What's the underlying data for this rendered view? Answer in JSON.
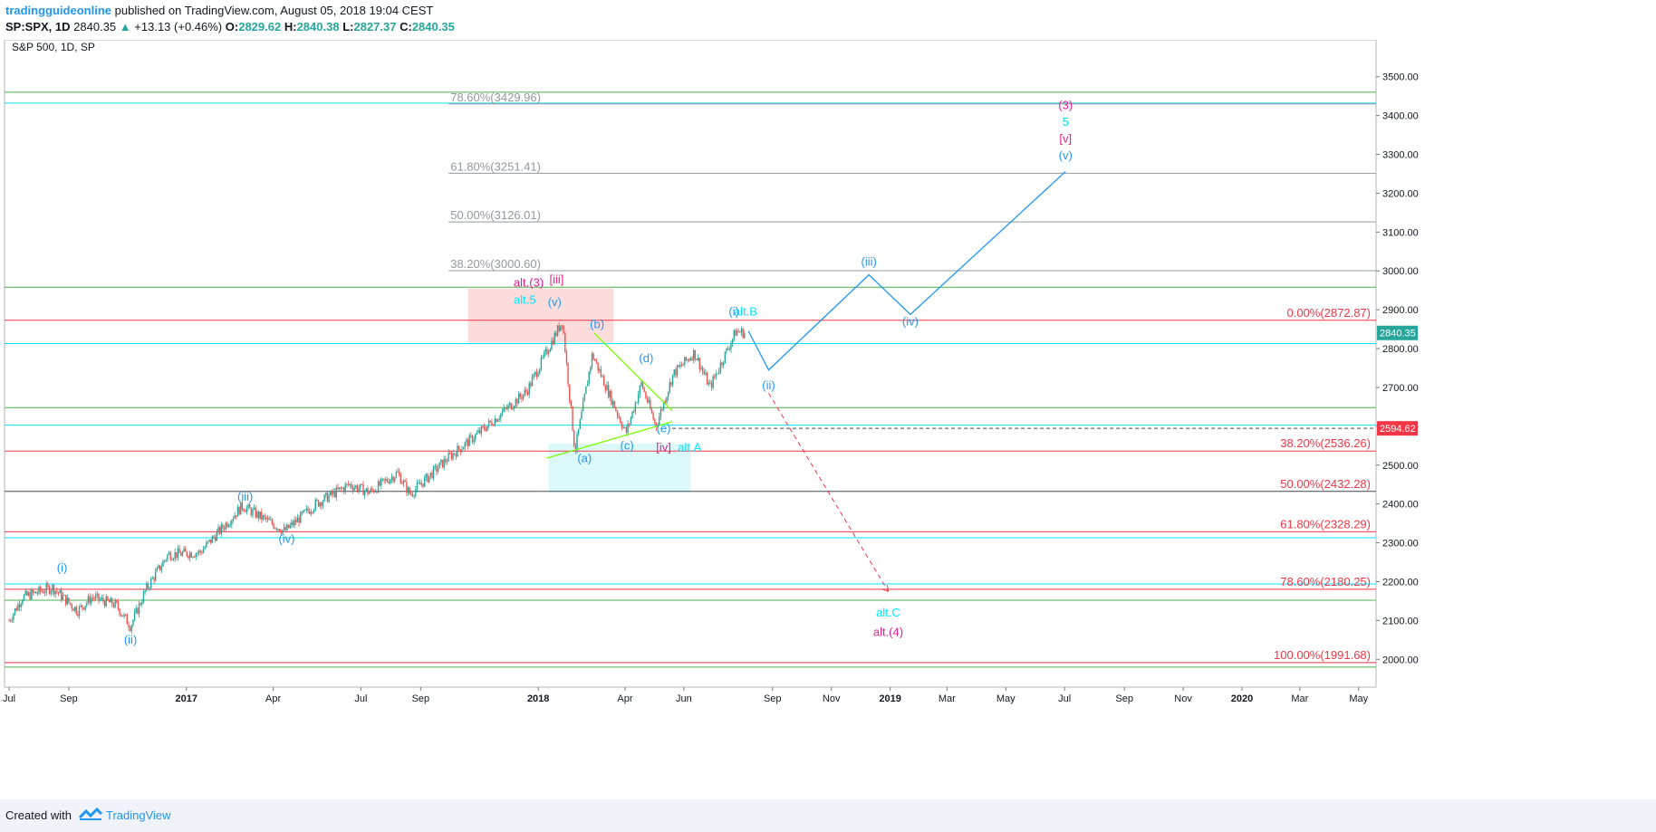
{
  "header": {
    "author": "tradingguideonline",
    "published_text": "published on TradingView.com, August 05, 2018 19:04 CEST",
    "symbol": "SP:SPX, 1D",
    "last": "2840.35",
    "change": "+13.13 (+0.46%)",
    "open_label": "O:",
    "open": "2829.62",
    "high_label": "H:",
    "high": "2840.38",
    "low_label": "L:",
    "low": "2827.37",
    "close_label": "C:",
    "close": "2840.35"
  },
  "footer": {
    "created_with": "Created with",
    "brand": "TradingView"
  },
  "colors": {
    "up": "#26a69a",
    "down": "#ef5350",
    "cyan": "#00e5ff",
    "green": "#4caf50",
    "red": "#f23645",
    "blue": "#2196f3",
    "magenta": "#e91e8c",
    "gray": "#9598a1",
    "lime": "#76ff03"
  },
  "chart_data": {
    "type": "candlestick",
    "title": "S&P 500, 1D, SP",
    "ylim": [
      1940,
      3560
    ],
    "y_ticks": [
      2000,
      2100,
      2200,
      2300,
      2400,
      2500,
      2600,
      2700,
      2800,
      2900,
      3000,
      3100,
      3200,
      3300,
      3400,
      3500
    ],
    "x_ticks": [
      "Jul",
      "Sep",
      "2017",
      "Apr",
      "Jul",
      "Sep",
      "2018",
      "Apr",
      "Jun",
      "Sep",
      "Nov",
      "2019",
      "Mar",
      "May",
      "Jul",
      "Sep",
      "Nov",
      "2020",
      "Mar",
      "May"
    ],
    "last_price": {
      "value": 2840.35,
      "label": "2840.35"
    },
    "marked_level": {
      "value": 2594.62,
      "label": "2594.62"
    },
    "price_path": [
      [
        "2016-07-01",
        2100
      ],
      [
        "2016-07-15",
        2160
      ],
      [
        "2016-08-15",
        2185
      ],
      [
        "2016-09-10",
        2125
      ],
      [
        "2016-09-25",
        2160
      ],
      [
        "2016-10-20",
        2140
      ],
      [
        "2016-11-04",
        2085
      ],
      [
        "2016-11-20",
        2180
      ],
      [
        "2016-12-13",
        2270
      ],
      [
        "2017-01-15",
        2275
      ],
      [
        "2017-02-28",
        2395
      ],
      [
        "2017-04-13",
        2330
      ],
      [
        "2017-05-15",
        2400
      ],
      [
        "2017-06-19",
        2450
      ],
      [
        "2017-07-10",
        2430
      ],
      [
        "2017-08-08",
        2480
      ],
      [
        "2017-08-21",
        2425
      ],
      [
        "2017-09-30",
        2520
      ],
      [
        "2017-10-30",
        2580
      ],
      [
        "2017-12-20",
        2690
      ],
      [
        "2018-01-26",
        2872
      ],
      [
        "2018-02-08",
        2535
      ],
      [
        "2018-02-26",
        2785
      ],
      [
        "2018-04-02",
        2582
      ],
      [
        "2018-04-18",
        2710
      ],
      [
        "2018-05-03",
        2600
      ],
      [
        "2018-05-21",
        2735
      ],
      [
        "2018-06-12",
        2790
      ],
      [
        "2018-06-28",
        2700
      ],
      [
        "2018-07-25",
        2845
      ],
      [
        "2018-08-03",
        2840
      ]
    ],
    "horizontal_lines": [
      {
        "value": 3460,
        "color": "green"
      },
      {
        "value": 3432,
        "color": "cyan"
      },
      {
        "value": 2958,
        "color": "green"
      },
      {
        "value": 2872.87,
        "color": "red"
      },
      {
        "value": 2813,
        "color": "cyan"
      },
      {
        "value": 2648,
        "color": "green"
      },
      {
        "value": 2603,
        "color": "cyan"
      },
      {
        "value": 2536.26,
        "color": "red"
      },
      {
        "value": 2432.28,
        "color": "dark"
      },
      {
        "value": 2328.29,
        "color": "red"
      },
      {
        "value": 2313,
        "color": "cyan"
      },
      {
        "value": 2194,
        "color": "cyan"
      },
      {
        "value": 2180.25,
        "color": "red"
      },
      {
        "value": 2152,
        "color": "green"
      },
      {
        "value": 1991.68,
        "color": "red"
      },
      {
        "value": 1980,
        "color": "green"
      }
    ],
    "fib_extension": [
      {
        "value": 3429.96,
        "label": "78.60%(3429.96)"
      },
      {
        "value": 3251.41,
        "label": "61.80%(3251.41)"
      },
      {
        "value": 3126.01,
        "label": "50.00%(3126.01)"
      },
      {
        "value": 3000.6,
        "label": "38.20%(3000.60)"
      }
    ],
    "fib_retracement": [
      {
        "value": 2872.87,
        "label": "0.00%(2872.87)"
      },
      {
        "value": 2536.26,
        "label": "38.20%(2536.26)"
      },
      {
        "value": 2432.28,
        "label": "50.00%(2432.28)"
      },
      {
        "value": 2328.29,
        "label": "61.80%(2328.29)"
      },
      {
        "value": 2180.25,
        "label": "78.60%(2180.25)"
      },
      {
        "value": 1991.68,
        "label": "100.00%(1991.68)"
      }
    ],
    "zones": [
      {
        "x1": "2017-10-20",
        "x2": "2018-03-20",
        "y1": 2815,
        "y2": 2955,
        "fill": "#fddcdc"
      },
      {
        "x1": "2018-01-12",
        "x2": "2018-06-08",
        "y1": 2430,
        "y2": 2555,
        "fill": "#dcfafc"
      }
    ],
    "triangle_lines": [
      {
        "p1": [
          "2018-01-10",
          2518
        ],
        "p2": [
          "2018-05-20",
          2612
        ]
      },
      {
        "p1": [
          "2018-02-28",
          2840
        ],
        "p2": [
          "2018-05-20",
          2640
        ]
      }
    ],
    "projection_path": [
      [
        "2018-08-07",
        2845
      ],
      [
        "2018-08-28",
        2745
      ],
      [
        "2018-12-10",
        2990
      ],
      [
        "2019-01-22",
        2888
      ],
      [
        "2019-07-02",
        3256
      ]
    ],
    "alt_projection": {
      "from": [
        "2018-08-28",
        2685
      ],
      "to": [
        "2018-12-30",
        2175
      ]
    },
    "labels": [
      {
        "text": "(i)",
        "x": "2016-08-25",
        "y": 2225,
        "color": "blue"
      },
      {
        "text": "(ii)",
        "x": "2016-11-04",
        "y": 2040,
        "color": "blue"
      },
      {
        "text": "(iii)",
        "x": "2017-03-03",
        "y": 2408,
        "color": "blue"
      },
      {
        "text": "(iv)",
        "x": "2017-04-15",
        "y": 2300,
        "color": "blue"
      },
      {
        "text": "alt.(3)",
        "x": "2017-12-22",
        "y": 2960,
        "color": "magenta"
      },
      {
        "text": "[iii]",
        "x": "2018-01-20",
        "y": 2968,
        "color": "magenta"
      },
      {
        "text": "alt.5",
        "x": "2017-12-18",
        "y": 2915,
        "color": "cyan"
      },
      {
        "text": "(v)",
        "x": "2018-01-18",
        "y": 2910,
        "color": "blue"
      },
      {
        "text": "(b)",
        "x": "2018-03-03",
        "y": 2852,
        "color": "blue"
      },
      {
        "text": "(d)",
        "x": "2018-04-23",
        "y": 2765,
        "color": "blue"
      },
      {
        "text": "(a)",
        "x": "2018-02-18",
        "y": 2508,
        "color": "blue"
      },
      {
        "text": "(c)",
        "x": "2018-04-03",
        "y": 2540,
        "color": "blue"
      },
      {
        "text": "(e)",
        "x": "2018-05-11",
        "y": 2585,
        "color": "blue"
      },
      {
        "text": "[iv]",
        "x": "2018-05-11",
        "y": 2535,
        "color": "magenta"
      },
      {
        "text": "alt.A",
        "x": "2018-06-07",
        "y": 2535,
        "color": "cyan"
      },
      {
        "text": "(i)",
        "x": "2018-07-23",
        "y": 2885,
        "color": "blue"
      },
      {
        "text": "alt.B",
        "x": "2018-08-04",
        "y": 2885,
        "color": "cyan"
      },
      {
        "text": "(ii)",
        "x": "2018-08-28",
        "y": 2695,
        "color": "blue"
      },
      {
        "text": "(iii)",
        "x": "2018-12-10",
        "y": 3013,
        "color": "blue"
      },
      {
        "text": "(iv)",
        "x": "2019-01-22",
        "y": 2860,
        "color": "blue"
      },
      {
        "text": "(3)",
        "x": "2019-07-02",
        "y": 3417,
        "color": "magenta"
      },
      {
        "text": "5",
        "x": "2019-07-02",
        "y": 3373,
        "color": "cyan"
      },
      {
        "text": "[v]",
        "x": "2019-07-02",
        "y": 3330,
        "color": "magenta"
      },
      {
        "text": "(v)",
        "x": "2019-07-02",
        "y": 3287,
        "color": "blue"
      },
      {
        "text": "alt.C",
        "x": "2018-12-30",
        "y": 2110,
        "color": "cyan"
      },
      {
        "text": "alt.(4)",
        "x": "2018-12-30",
        "y": 2060,
        "color": "magenta"
      }
    ]
  }
}
